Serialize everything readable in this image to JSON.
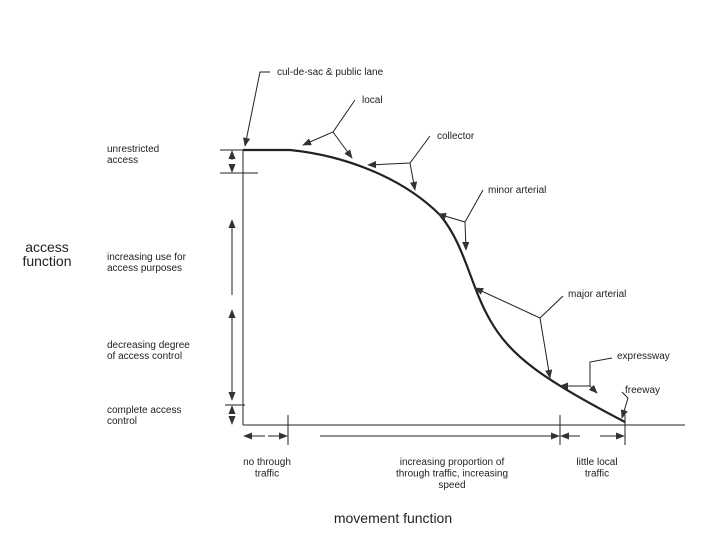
{
  "curve_labels": [
    [
      "cul-de-sac & public lane"
    ],
    [
      "local"
    ],
    [
      "collector"
    ],
    [
      "minor arterial"
    ],
    [
      "major arterial"
    ],
    [
      "expressway"
    ],
    [
      "freeway"
    ]
  ],
  "levels": [
    [
      "unrestricted",
      "access"
    ],
    [
      "increasing use for",
      "access purposes"
    ],
    [
      "decreasing degree",
      "of access control"
    ],
    [
      "complete access",
      "control"
    ]
  ],
  "y_axis": [
    "access",
    "function"
  ],
  "bands": [
    [
      "no through",
      "traffic"
    ],
    [
      "increasing proportion of",
      "through traffic, increasing",
      "speed"
    ],
    [
      "little local",
      "traffic"
    ]
  ],
  "x_axis": "movement function"
}
